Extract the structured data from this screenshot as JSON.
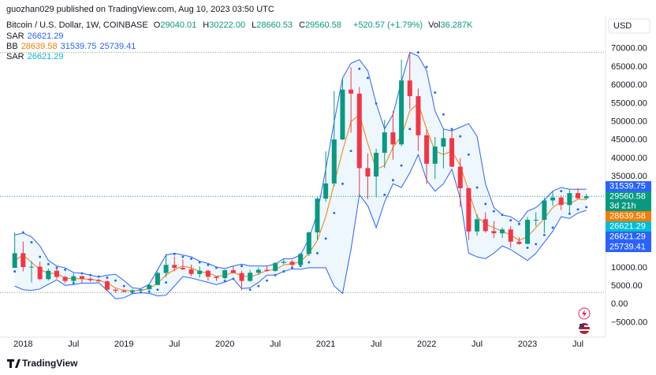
{
  "header": {
    "publisher": "guozhan029 published on TradingView.com, Aug 10, 2023 03:50 UTC",
    "symbol": "Bitcoin / U.S. Dollar, 1W, COINBASE",
    "ohlc": [
      {
        "label": "O",
        "value": "29040.01"
      },
      {
        "label": "H",
        "value": "30222.00"
      },
      {
        "label": "L",
        "value": "28660.53"
      },
      {
        "label": "C",
        "value": "29560.58"
      }
    ],
    "change": "+520.57 (+1.79%)",
    "volume": {
      "label": "Vol",
      "value": "36.287K"
    }
  },
  "footer": {
    "brand": "TradingView"
  },
  "chart_data": {
    "type": "candlestick",
    "currency": "USD",
    "countdown": "3d 21h",
    "up_color": "#089981",
    "down_color": "#f23645",
    "x": [
      "2017-12",
      "2018-01",
      "2018-02",
      "2018-03",
      "2018-04",
      "2018-05",
      "2018-06",
      "2018-07",
      "2018-08",
      "2018-09",
      "2018-10",
      "2018-11",
      "2018-12",
      "2019-01",
      "2019-02",
      "2019-03",
      "2019-04",
      "2019-05",
      "2019-06",
      "2019-07",
      "2019-08",
      "2019-09",
      "2019-10",
      "2019-11",
      "2019-12",
      "2020-01",
      "2020-02",
      "2020-03",
      "2020-04",
      "2020-05",
      "2020-06",
      "2020-07",
      "2020-08",
      "2020-09",
      "2020-10",
      "2020-11",
      "2020-12",
      "2021-01",
      "2021-02",
      "2021-03",
      "2021-04",
      "2021-05",
      "2021-06",
      "2021-07",
      "2021-08",
      "2021-09",
      "2021-10",
      "2021-11",
      "2021-12",
      "2022-01",
      "2022-02",
      "2022-03",
      "2022-04",
      "2022-05",
      "2022-06",
      "2022-07",
      "2022-08",
      "2022-09",
      "2022-10",
      "2022-11",
      "2022-12",
      "2023-01",
      "2023-02",
      "2023-03",
      "2023-04",
      "2023-05",
      "2023-06",
      "2023-07",
      "2023-08"
    ],
    "open": [
      10000,
      14000,
      10200,
      10300,
      6900,
      9200,
      7500,
      6400,
      7700,
      7000,
      6600,
      6300,
      4000,
      3700,
      3400,
      3800,
      4100,
      5300,
      8600,
      10800,
      10000,
      9600,
      8300,
      9200,
      7550,
      7200,
      9350,
      8550,
      6400,
      8650,
      9450,
      9150,
      11350,
      11650,
      10800,
      13800,
      19700,
      28950,
      33100,
      45150,
      58800,
      57700,
      37300,
      35000,
      41500,
      47100,
      43800,
      61300,
      57000,
      46300,
      38500,
      43200,
      45500,
      37700,
      31800,
      19950,
      23300,
      20050,
      19450,
      20500,
      17150,
      16550,
      23150,
      23150,
      28450,
      29250,
      27200,
      30450,
      29040.01
    ],
    "high": [
      19700,
      17200,
      11800,
      11700,
      9800,
      10000,
      7800,
      8500,
      7800,
      7400,
      7000,
      6600,
      4300,
      4100,
      4200,
      4100,
      5600,
      9000,
      13800,
      13100,
      12300,
      10900,
      10400,
      9500,
      7750,
      9550,
      10500,
      9200,
      9450,
      10100,
      10400,
      11450,
      12500,
      12100,
      14100,
      19900,
      29300,
      41900,
      58350,
      61800,
      64900,
      59500,
      41300,
      42600,
      50500,
      52900,
      67000,
      69000,
      59100,
      48000,
      45800,
      48200,
      47400,
      40000,
      31900,
      24650,
      25200,
      22800,
      21000,
      21450,
      18400,
      23950,
      25250,
      29200,
      31000,
      29800,
      31400,
      31800,
      30222
    ],
    "low": [
      10000,
      9000,
      6000,
      6600,
      6500,
      7000,
      5800,
      6100,
      5900,
      6100,
      6200,
      3600,
      3200,
      3400,
      3400,
      3700,
      4100,
      5300,
      7500,
      9000,
      9400,
      7700,
      7300,
      6500,
      6400,
      6850,
      8450,
      3850,
      6150,
      8100,
      8900,
      8950,
      11000,
      9850,
      10400,
      13200,
      17600,
      28100,
      32300,
      45000,
      47000,
      30000,
      28800,
      29300,
      37300,
      39600,
      43300,
      53500,
      42000,
      32900,
      34300,
      37200,
      37600,
      26700,
      17600,
      18800,
      19600,
      18150,
      18200,
      15500,
      16300,
      16500,
      21350,
      19550,
      26950,
      25800,
      24800,
      28900,
      28660.53
    ],
    "close": [
      14000,
      10200,
      10300,
      6900,
      9200,
      7500,
      6400,
      7700,
      7000,
      6600,
      6300,
      4000,
      3700,
      3400,
      3800,
      4100,
      5300,
      8600,
      10800,
      10000,
      9600,
      8300,
      9200,
      7550,
      7200,
      9350,
      8550,
      6400,
      8650,
      9450,
      9150,
      11350,
      11650,
      10800,
      13800,
      19700,
      28950,
      33100,
      45150,
      58800,
      57700,
      37300,
      35000,
      41500,
      47100,
      43800,
      61300,
      57000,
      46300,
      38500,
      43200,
      45500,
      37700,
      31800,
      19950,
      23300,
      20050,
      19450,
      20500,
      17150,
      16550,
      23150,
      23150,
      28450,
      29250,
      27200,
      30450,
      29040,
      29560.58
    ],
    "indicators": [
      {
        "name": "SAR",
        "color": "#2962ff",
        "values": [
          9000,
          19700,
          17000,
          13000,
          11000,
          10000,
          9500,
          5800,
          8500,
          8000,
          7600,
          7300,
          6500,
          5000,
          3200,
          3300,
          3500,
          4000,
          6000,
          13800,
          13000,
          12500,
          11500,
          10800,
          10000,
          6400,
          7000,
          10500,
          4000,
          5000,
          6500,
          8000,
          9000,
          10000,
          10500,
          11500,
          14000,
          18000,
          25000,
          33000,
          42000,
          64500,
          62000,
          55000,
          30000,
          34000,
          38000,
          48000,
          69000,
          65000,
          58000,
          52000,
          48000,
          46000,
          41000,
          32000,
          27500,
          25500,
          24500,
          23000,
          22000,
          15500,
          16500,
          19000,
          21000,
          31000,
          24800,
          26000,
          26621.29
        ]
      },
      {
        "name": "BB",
        "fill": "#2196f314",
        "lines": [
          {
            "color": "#f57c00",
            "values": [
              12000,
              13500,
              11500,
              9500,
              8500,
              8500,
              7200,
              7000,
              7000,
              6800,
              6600,
              5800,
              4500,
              3800,
              3700,
              3800,
              4300,
              5800,
              8000,
              9500,
              10500,
              10000,
              9000,
              8600,
              7700,
              7900,
              8800,
              7800,
              7500,
              8300,
              9300,
              9500,
              10800,
              11100,
              11700,
              14000,
              17500,
              24000,
              33000,
              42000,
              50000,
              52000,
              44000,
              37000,
              38000,
              43000,
              46000,
              53000,
              55000,
              48000,
              42000,
              41000,
              42000,
              38000,
              31000,
              24000,
              22000,
              21000,
              20000,
              19000,
              17500,
              18500,
              21000,
              23500,
              26500,
              28000,
              27500,
              28800,
              28639.58
            ]
          },
          {
            "color": "#2962ff",
            "values": [
              19000,
              19500,
              18500,
              16000,
              12000,
              10500,
              10000,
              8700,
              8500,
              8000,
              7500,
              8000,
              8200,
              6500,
              4500,
              4300,
              5500,
              9500,
              13500,
              14000,
              13500,
              13000,
              11800,
              11200,
              10200,
              9800,
              10500,
              11000,
              10500,
              10500,
              10500,
              11000,
              12500,
              12500,
              13500,
              18000,
              25000,
              37000,
              50000,
              62000,
              66000,
              67000,
              64000,
              55000,
              48000,
              52000,
              61000,
              69000,
              68000,
              64000,
              53000,
              48000,
              47500,
              48500,
              49500,
              46000,
              33000,
              26500,
              24500,
              24000,
              22500,
              25500,
              26500,
              28500,
              31000,
              32000,
              31500,
              31500,
              31539.75
            ]
          },
          {
            "color": "#2962ff",
            "values": [
              5000,
              4000,
              3800,
              4200,
              5500,
              6700,
              5200,
              5400,
              5800,
              5800,
              5900,
              3800,
              1500,
              1800,
              2900,
              3200,
              3000,
              2300,
              2500,
              5000,
              7600,
              7200,
              6600,
              6000,
              5400,
              6100,
              7000,
              4300,
              4500,
              6000,
              8000,
              8000,
              9000,
              9700,
              9600,
              10000,
              10000,
              10000,
              5000,
              3000,
              15000,
              30000,
              27000,
              21000,
              28000,
              33000,
              32000,
              36000,
              41000,
              34000,
              31000,
              33000,
              37000,
              29000,
              14000,
              13000,
              12500,
              14000,
              16000,
              15000,
              13500,
              12000,
              14000,
              17000,
              20000,
              24000,
              23500,
              25000,
              25739.41
            ]
          }
        ]
      },
      {
        "name": "SAR",
        "color": "#00bcd4",
        "values": [
          9000,
          19700,
          17000,
          13000,
          11000,
          10000,
          9500,
          5800,
          8500,
          8000,
          7600,
          7300,
          6500,
          5000,
          3200,
          3300,
          3500,
          4000,
          6000,
          13800,
          13000,
          12500,
          11500,
          10800,
          10000,
          6400,
          7000,
          10500,
          4000,
          5000,
          6500,
          8000,
          9000,
          10000,
          10500,
          11500,
          14000,
          18000,
          25000,
          33000,
          42000,
          64500,
          62000,
          55000,
          30000,
          34000,
          38000,
          48000,
          69000,
          65000,
          58000,
          52000,
          48000,
          46000,
          41000,
          32000,
          27500,
          25500,
          24500,
          23000,
          22000,
          15500,
          16500,
          19000,
          21000,
          31000,
          24800,
          26000,
          26621.29
        ]
      }
    ],
    "xlim": [
      "2017-11",
      "2023-10"
    ],
    "xticks": [
      {
        "value": "2018-01",
        "label": "2018"
      },
      {
        "value": "2018-07",
        "label": "Jul"
      },
      {
        "value": "2019-01",
        "label": "2019"
      },
      {
        "value": "2019-07",
        "label": "Jul"
      },
      {
        "value": "2020-01",
        "label": "2020"
      },
      {
        "value": "2020-07",
        "label": "Jul"
      },
      {
        "value": "2021-01",
        "label": "2021"
      },
      {
        "value": "2021-07",
        "label": "Jul"
      },
      {
        "value": "2022-01",
        "label": "2022"
      },
      {
        "value": "2022-07",
        "label": "Jul"
      },
      {
        "value": "2023-01",
        "label": "2023"
      },
      {
        "value": "2023-07",
        "label": "Jul"
      }
    ],
    "ylim": [
      -9000,
      77300
    ],
    "yticks": [
      {
        "value": 70000,
        "label": "70000.00"
      },
      {
        "value": 65000,
        "label": "65000.00"
      },
      {
        "value": 60000,
        "label": "60000.00"
      },
      {
        "value": 55000,
        "label": "55000.00"
      },
      {
        "value": 50000,
        "label": "50000.00"
      },
      {
        "value": 45000,
        "label": "45000.00"
      },
      {
        "value": 40000,
        "label": "40000.00"
      },
      {
        "value": 35000,
        "label": "35000.00"
      },
      {
        "value": 10000,
        "label": "10000.00"
      },
      {
        "value": 5000,
        "label": "5000.00"
      },
      {
        "value": 0,
        "label": "0.00"
      },
      {
        "value": -5000,
        "label": "−5000.00"
      }
    ],
    "grid": false
  }
}
